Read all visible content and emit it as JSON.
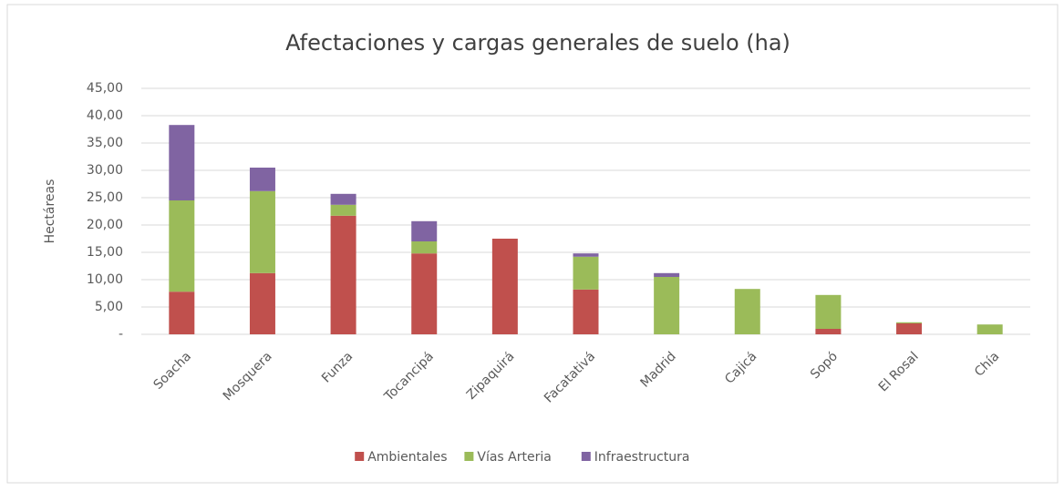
{
  "chart_data": {
    "type": "stacked_bar",
    "title": "Afectaciones y cargas generales de suelo (ha)",
    "y_label": "Hectáreas",
    "categories": [
      "Soacha",
      "Mosquera",
      "Funza",
      "Tocancipá",
      "Zipaquirá",
      "Facatativá",
      "Madrid",
      "Cajicá",
      "Sopó",
      "El Rosal",
      "Chía"
    ],
    "series": [
      {
        "name": "Ambientales",
        "color": "#c0504d",
        "values": [
          7.8,
          11.2,
          21.7,
          14.8,
          17.5,
          8.2,
          0,
          0,
          1.0,
          2.0,
          0
        ]
      },
      {
        "name": "Vías Arteria",
        "color": "#9bbb59",
        "values": [
          16.7,
          15.0,
          2.0,
          2.2,
          0,
          6.0,
          10.5,
          8.3,
          6.2,
          0.2,
          1.8
        ]
      },
      {
        "name": "Infraestructura",
        "color": "#8064a2",
        "values": [
          13.8,
          4.3,
          2.0,
          3.7,
          0,
          0.6,
          0.7,
          0,
          0,
          0,
          0
        ]
      }
    ],
    "ylim": [
      0,
      45
    ],
    "yticks": [
      {
        "value": 0,
        "label": "-"
      },
      {
        "value": 5,
        "label": "5,00"
      },
      {
        "value": 10,
        "label": "10,00"
      },
      {
        "value": 15,
        "label": "15,00"
      },
      {
        "value": 20,
        "label": "20,00"
      },
      {
        "value": 25,
        "label": "25,00"
      },
      {
        "value": 30,
        "label": "30,00"
      },
      {
        "value": 35,
        "label": "35,00"
      },
      {
        "value": 40,
        "label": "40,00"
      },
      {
        "value": 45,
        "label": "45,00"
      }
    ],
    "grid": true,
    "legend": "bottom"
  }
}
